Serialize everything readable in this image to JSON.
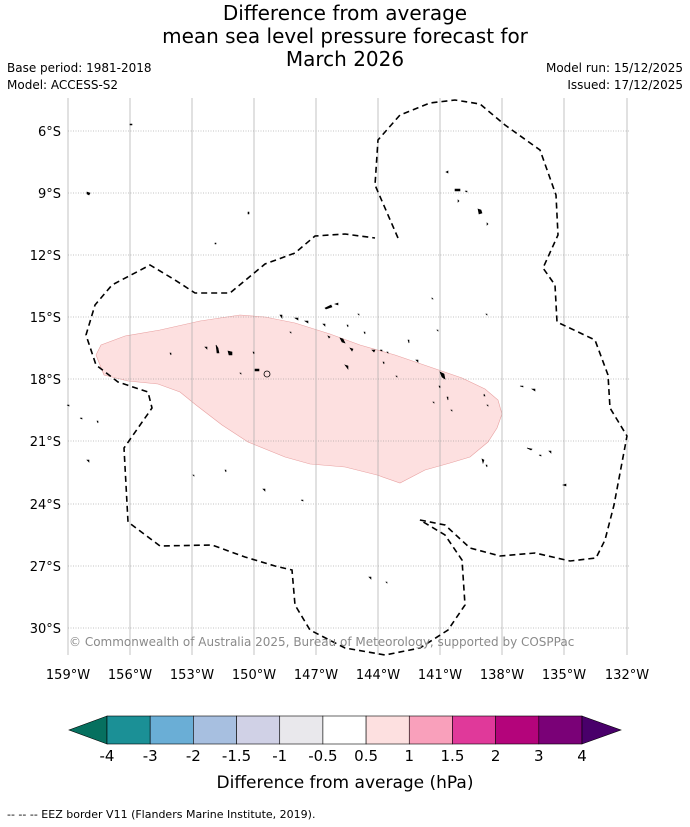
{
  "header": {
    "title_line1": "Difference from average",
    "title_line2": "mean sea level pressure forecast for",
    "title_line3": "March 2026",
    "base_period": "Base period: 1981-2018",
    "model": "Model: ACCESS-S2",
    "model_run": "Model run: 15/12/2025",
    "issued": "Issued: 17/12/2025"
  },
  "map": {
    "lat_labels": [
      "6°S",
      "9°S",
      "12°S",
      "15°S",
      "18°S",
      "21°S",
      "24°S",
      "27°S",
      "30°S"
    ],
    "lon_labels": [
      "159°W",
      "156°W",
      "153°W",
      "150°W",
      "147°W",
      "144°W",
      "141°W",
      "138°W",
      "135°W",
      "132°W"
    ],
    "copyright": "© Commonwealth of Australia 2025, Bureau of Meteorology, supported by COSPPac",
    "anomaly_region_class": "0.5 to 1",
    "anomaly_color": "#fde0e0"
  },
  "colorbar": {
    "label": "Difference from average (hPa)",
    "ticks": [
      "-4",
      "-3",
      "-2",
      "-1.5",
      "-1",
      "-0.5",
      "0.5",
      "1",
      "1.5",
      "2",
      "3",
      "4"
    ],
    "colors": [
      "#1b9096",
      "#6aaed6",
      "#a7bfe0",
      "#d0d1e6",
      "#e9e8ec",
      "#ffffff",
      "#fde0e0",
      "#f9a0bb",
      "#e0399a",
      "#b4047b",
      "#7a0177"
    ],
    "under_color": "#06705f",
    "over_color": "#49006a"
  },
  "legend": {
    "eez": "-- -- -- EEZ border V11 (Flanders Marine Institute, 2019)."
  }
}
